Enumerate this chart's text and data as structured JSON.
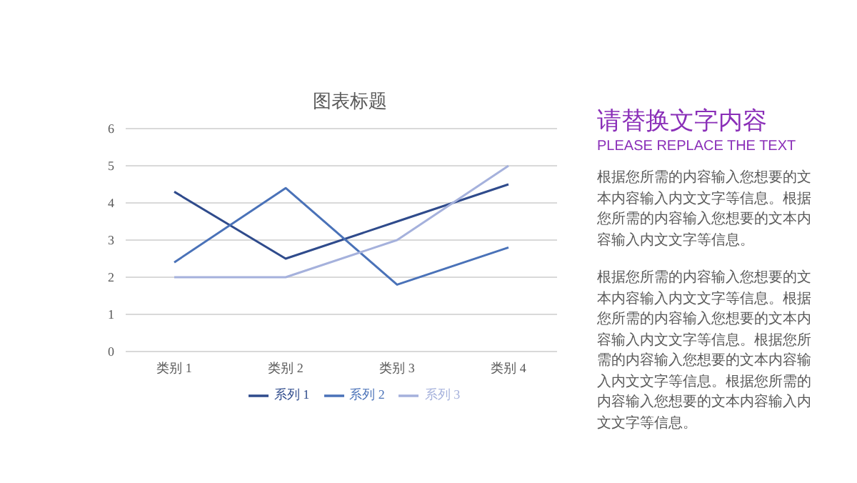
{
  "chart_data": [
    {
      "type": "line",
      "title": "图表标题",
      "categories": [
        "类别 1",
        "类别 2",
        "类别 3",
        "类别 4"
      ],
      "series": [
        {
          "name": "系列 1",
          "color": "#2f4b8c",
          "values": [
            4.3,
            2.5,
            3.5,
            4.5
          ]
        },
        {
          "name": "系列 2",
          "color": "#4a72b8",
          "values": [
            2.4,
            4.4,
            1.8,
            2.8
          ]
        },
        {
          "name": "系列 3",
          "color": "#a5b1dc",
          "values": [
            2,
            2,
            3,
            5
          ]
        }
      ],
      "ylim": [
        0,
        6
      ],
      "yticks": [
        0,
        1,
        2,
        3,
        4,
        5,
        6
      ],
      "grid": "y",
      "legend": "bottom",
      "marker": "none",
      "line_style": "solid"
    },
    {
      "type": "other",
      "title": "请替换文字内容",
      "subtitle": "PLEASE REPLACE THE TEXT",
      "annotations": [
        "根据您所需的内容输入您想要的文本内容输入内文文字等信息。根据您所需的内容输入您想要的文本内容输入内文文字等信息。",
        "根据您所需的内容输入您想要的文本内容输入内文文字等信息。根据您所需的内容输入您想要的文本内容输入内文文字等信息。根据您所需的内容输入您想要的文本内容输入内文文字等信息。根据您所需的内容输入您想要的文本内容输入内文文字等信息。"
      ]
    }
  ]
}
